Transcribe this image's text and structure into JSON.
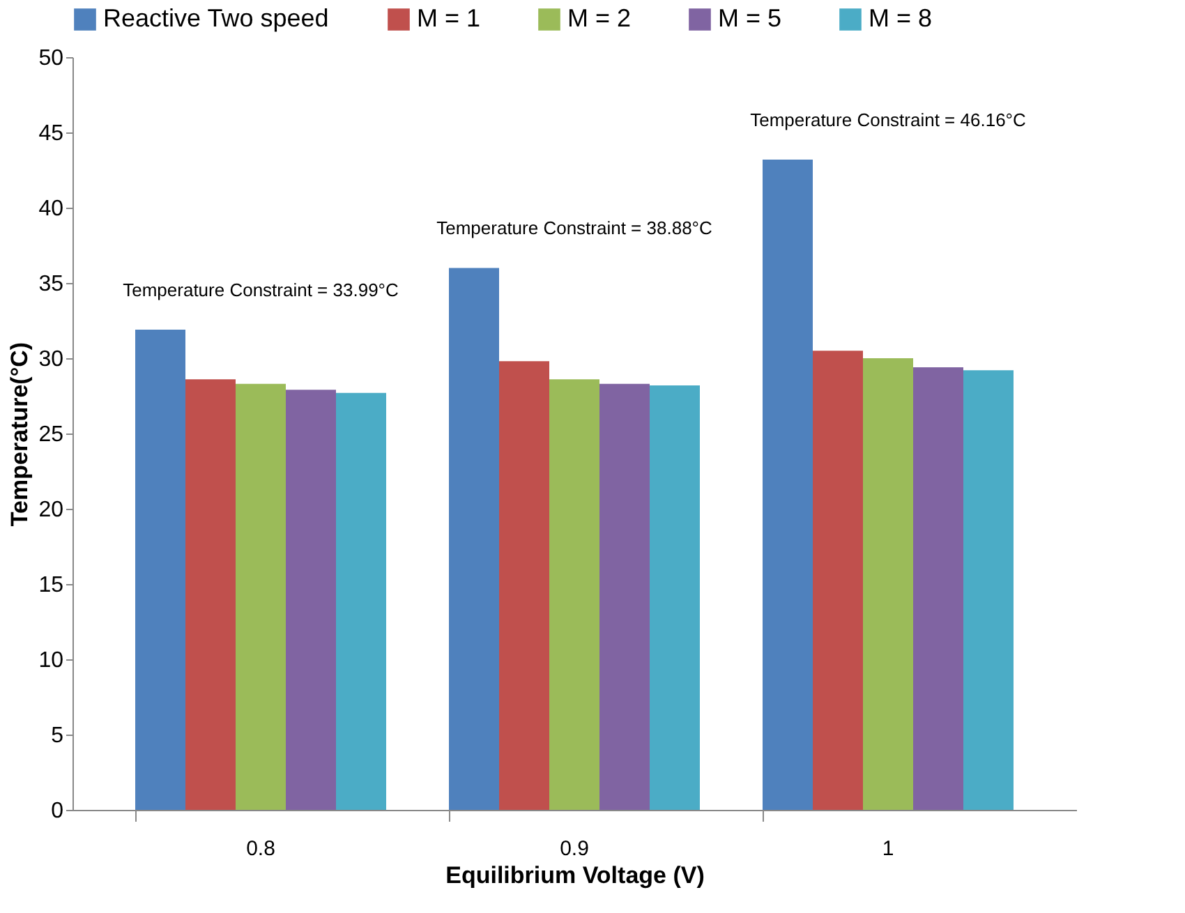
{
  "chart_data": {
    "type": "bar",
    "xlabel": "Equilibrium Voltage (V)",
    "ylabel": "Temperature(°C)",
    "categories": [
      "0.8",
      "0.9",
      "1"
    ],
    "series": [
      {
        "name": "Reactive Two speed",
        "color": "#4f81bd",
        "values": [
          31.9,
          36.0,
          43.2
        ]
      },
      {
        "name": "M = 1",
        "color": "#c0504d",
        "values": [
          28.6,
          29.8,
          30.5
        ]
      },
      {
        "name": "M = 2",
        "color": "#9bbb59",
        "values": [
          28.3,
          28.6,
          30.0
        ]
      },
      {
        "name": "M = 5",
        "color": "#8064a2",
        "values": [
          27.9,
          28.3,
          29.4
        ]
      },
      {
        "name": "M = 8",
        "color": "#4bacc6",
        "values": [
          27.7,
          28.2,
          29.2
        ]
      }
    ],
    "ylim": [
      0,
      50
    ],
    "yticks": [
      0,
      5,
      10,
      15,
      20,
      25,
      30,
      35,
      40,
      45,
      50
    ],
    "grid": false,
    "legend": "top",
    "annotations": [
      "Temperature Constraint = 33.99°C",
      "Temperature Constraint  = 38.88°C",
      "Temperature Constraint  = 46.16°C"
    ]
  }
}
